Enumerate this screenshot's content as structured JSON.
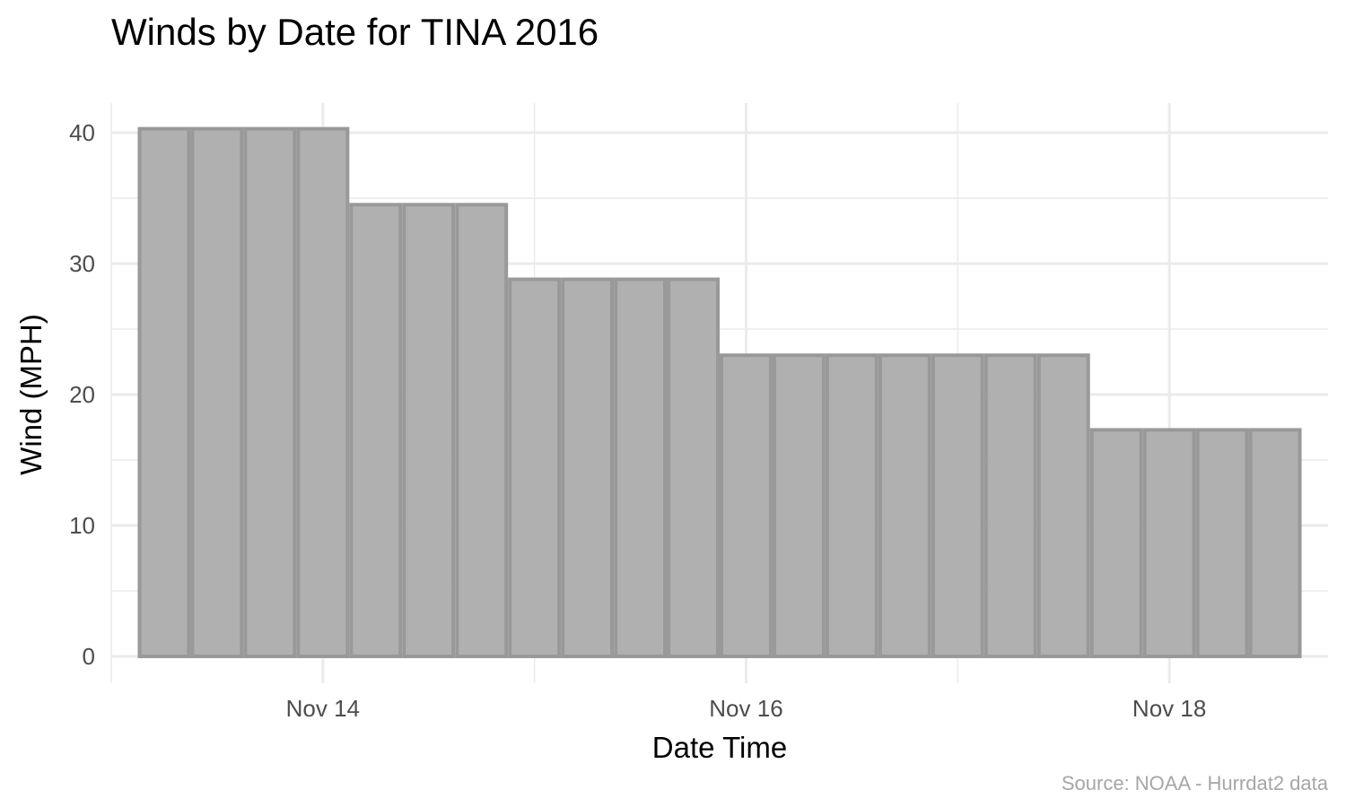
{
  "chart_data": {
    "type": "bar",
    "title": "Winds by Date for TINA 2016",
    "xlabel": "Date Time",
    "ylabel": "Wind (MPH)",
    "caption": "Source: NOAA - Hurrdat2 data",
    "x": [
      "2016-11-13 06:00",
      "2016-11-13 12:00",
      "2016-11-13 18:00",
      "2016-11-14 00:00",
      "2016-11-14 06:00",
      "2016-11-14 12:00",
      "2016-11-14 18:00",
      "2016-11-15 00:00",
      "2016-11-15 06:00",
      "2016-11-15 12:00",
      "2016-11-15 18:00",
      "2016-11-16 00:00",
      "2016-11-16 06:00",
      "2016-11-16 12:00",
      "2016-11-16 18:00",
      "2016-11-17 00:00",
      "2016-11-17 06:00",
      "2016-11-17 12:00",
      "2016-11-17 18:00",
      "2016-11-18 00:00",
      "2016-11-18 06:00",
      "2016-11-18 12:00"
    ],
    "values": [
      40.3,
      40.3,
      40.3,
      40.3,
      34.5,
      34.5,
      34.5,
      28.8,
      28.8,
      28.8,
      28.8,
      23.0,
      23.0,
      23.0,
      23.0,
      23.0,
      23.0,
      23.0,
      17.3,
      17.3,
      17.3,
      17.3
    ],
    "xlim": [
      "2016-11-13 00:00",
      "2016-11-18 18:00"
    ],
    "ylim": [
      0,
      42
    ],
    "yticks": [
      0,
      10,
      20,
      30,
      40
    ],
    "ytick_labels": [
      "0",
      "10",
      "20",
      "30",
      "40"
    ],
    "xticks": [
      "2016-11-14 00:00",
      "2016-11-16 00:00",
      "2016-11-18 00:00"
    ],
    "xtick_labels": [
      "Nov 14",
      "Nov 16",
      "Nov 18"
    ],
    "grid": true,
    "legend": "none",
    "colors": {
      "bar_fill": "#b0b0b0",
      "bar_stroke": "#999999",
      "grid": "#ebebeb"
    }
  }
}
